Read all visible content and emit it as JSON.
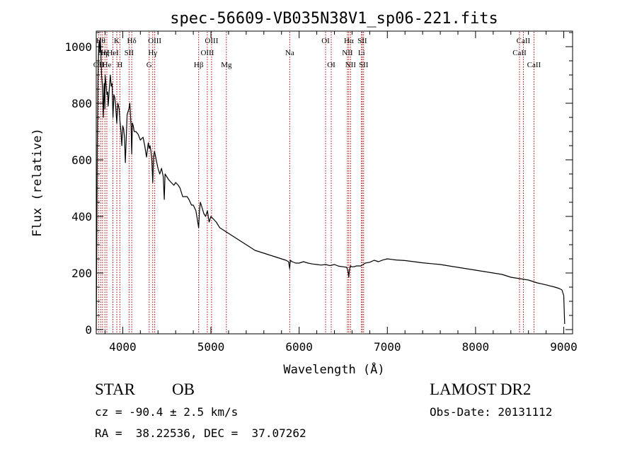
{
  "chart_data": {
    "type": "line",
    "title": "spec-56609-VB035N38V1_sp06-221.fits",
    "xlabel": "Wavelength (Å)",
    "ylabel": "Flux (relative)",
    "xlim": [
      3700,
      9100
    ],
    "ylim": [
      -15,
      1055
    ],
    "xticks": [
      {
        "value": 4000,
        "label": "4000"
      },
      {
        "value": 5000,
        "label": "5000"
      },
      {
        "value": 6000,
        "label": "6000"
      },
      {
        "value": 7000,
        "label": "7000"
      },
      {
        "value": 8000,
        "label": "8000"
      },
      {
        "value": 9000,
        "label": "9000"
      }
    ],
    "yticks": [
      {
        "value": 0,
        "label": "0"
      },
      {
        "value": 200,
        "label": "200"
      },
      {
        "value": 400,
        "label": "400"
      },
      {
        "value": 600,
        "label": "600"
      },
      {
        "value": 800,
        "label": "800"
      },
      {
        "value": 1000,
        "label": "1000"
      }
    ],
    "line_color": "#000000",
    "marker_color": "#aa0000",
    "grid": false,
    "series": [
      {
        "x": [
          3700,
          3705,
          3712,
          3720,
          3728,
          3735,
          3740,
          3745,
          3750,
          3760,
          3770,
          3780,
          3790,
          3798,
          3800,
          3810,
          3820,
          3830,
          3835,
          3840,
          3850,
          3860,
          3870,
          3880,
          3889,
          3900,
          3910,
          3920,
          3933,
          3945,
          3960,
          3968,
          3980,
          3990,
          4000,
          4010,
          4020,
          4030,
          4050,
          4070,
          4080,
          4095,
          4102,
          4110,
          4120,
          4130,
          4150,
          4175,
          4200,
          4230,
          4250,
          4270,
          4290,
          4300,
          4310,
          4320,
          4330,
          4340,
          4350,
          4360,
          4380,
          4400,
          4420,
          4440,
          4460,
          4471,
          4480,
          4500,
          4520,
          4550,
          4580,
          4600,
          4630,
          4650,
          4680,
          4700,
          4730,
          4750,
          4780,
          4800,
          4830,
          4861,
          4870,
          4880,
          4900,
          4920,
          4940,
          4960,
          4980,
          5000,
          5030,
          5060,
          5100,
          5150,
          5200,
          5250,
          5300,
          5350,
          5400,
          5450,
          5500,
          5550,
          5600,
          5650,
          5700,
          5750,
          5800,
          5850,
          5880,
          5893,
          5900,
          5920,
          5960,
          6000,
          6050,
          6100,
          6150,
          6200,
          6250,
          6300,
          6350,
          6400,
          6450,
          6500,
          6540,
          6555,
          6563,
          6570,
          6580,
          6600,
          6620,
          6650,
          6700,
          6750,
          6800,
          6850,
          6900,
          6950,
          7000,
          7050,
          7100,
          7150,
          7200,
          7300,
          7400,
          7500,
          7600,
          7700,
          7800,
          7900,
          8000,
          8100,
          8200,
          8300,
          8400,
          8500,
          8600,
          8700,
          8800,
          8900,
          8950,
          8980,
          9000,
          9010
        ],
        "y": [
          0,
          250,
          650,
          900,
          1000,
          1020,
          980,
          1030,
          1000,
          900,
          860,
          750,
          870,
          780,
          900,
          870,
          830,
          840,
          790,
          810,
          860,
          900,
          860,
          870,
          750,
          830,
          820,
          790,
          730,
          800,
          780,
          740,
          700,
          650,
          720,
          710,
          680,
          590,
          760,
          780,
          800,
          720,
          620,
          730,
          720,
          700,
          700,
          690,
          670,
          680,
          650,
          610,
          660,
          640,
          650,
          630,
          600,
          520,
          610,
          630,
          600,
          570,
          550,
          570,
          540,
          460,
          550,
          540,
          530,
          520,
          510,
          520,
          510,
          500,
          470,
          470,
          470,
          460,
          440,
          440,
          420,
          360,
          420,
          450,
          430,
          410,
          400,
          420,
          380,
          400,
          390,
          380,
          360,
          350,
          340,
          330,
          320,
          310,
          300,
          290,
          280,
          275,
          270,
          265,
          260,
          255,
          250,
          245,
          240,
          215,
          245,
          240,
          235,
          235,
          240,
          235,
          232,
          230,
          228,
          230,
          226,
          230,
          224,
          222,
          220,
          205,
          185,
          210,
          225,
          222,
          222,
          225,
          225,
          235,
          238,
          245,
          240,
          246,
          250,
          248,
          246,
          245,
          244,
          240,
          236,
          233,
          230,
          225,
          220,
          215,
          210,
          205,
          200,
          195,
          185,
          180,
          175,
          165,
          158,
          150,
          145,
          140,
          120,
          20
        ]
      }
    ],
    "line_markers": [
      {
        "wavelength": 3727,
        "label": "OII",
        "row": 2
      },
      {
        "wavelength": 3750,
        "label": "Hθ",
        "row": 0
      },
      {
        "wavelength": 3771,
        "label": "Hη",
        "row": 1
      },
      {
        "wavelength": 3798,
        "label": "Hζ",
        "row": 1
      },
      {
        "wavelength": 3820,
        "label": "He",
        "row": 2
      },
      {
        "wavelength": 3889,
        "label": "HeI",
        "row": 1
      },
      {
        "wavelength": 3933,
        "label": "K",
        "row": 0
      },
      {
        "wavelength": 3968,
        "label": "H",
        "row": 2
      },
      {
        "wavelength": 4072,
        "label": "SII",
        "row": 1
      },
      {
        "wavelength": 4102,
        "label": "Hδ",
        "row": 0
      },
      {
        "wavelength": 4300,
        "label": "G",
        "row": 2
      },
      {
        "wavelength": 4340,
        "label": "Hγ",
        "row": 1
      },
      {
        "wavelength": 4363,
        "label": "OIII",
        "row": 0
      },
      {
        "wavelength": 4861,
        "label": "Hβ",
        "row": 2
      },
      {
        "wavelength": 4959,
        "label": "OIII",
        "row": 1
      },
      {
        "wavelength": 5007,
        "label": "OIII",
        "row": 0
      },
      {
        "wavelength": 5175,
        "label": "Mg",
        "row": 2
      },
      {
        "wavelength": 5893,
        "label": "Na",
        "row": 1
      },
      {
        "wavelength": 6300,
        "label": "OI",
        "row": 0
      },
      {
        "wavelength": 6364,
        "label": "OI",
        "row": 2
      },
      {
        "wavelength": 6548,
        "label": "NII",
        "row": 1
      },
      {
        "wavelength": 6563,
        "label": "Hα",
        "row": 0
      },
      {
        "wavelength": 6583,
        "label": "NII",
        "row": 2
      },
      {
        "wavelength": 6707,
        "label": "Li",
        "row": 1
      },
      {
        "wavelength": 6716,
        "label": "SII",
        "row": 0
      },
      {
        "wavelength": 6731,
        "label": "SII",
        "row": 2
      },
      {
        "wavelength": 8498,
        "label": "CaII",
        "row": 1
      },
      {
        "wavelength": 8542,
        "label": "CaII",
        "row": 0
      },
      {
        "wavelength": 8662,
        "label": "CaII",
        "row": 2
      }
    ]
  },
  "info": {
    "class_label": "STAR",
    "subclass_label": "OB",
    "redshift_line": "cz = -90.4 ± 2.5 km/s",
    "coords_line": "RA =  38.22536, DEC =  37.07262",
    "survey_label": "LAMOST DR2",
    "obs_date_line": "Obs-Date: 20131112"
  }
}
